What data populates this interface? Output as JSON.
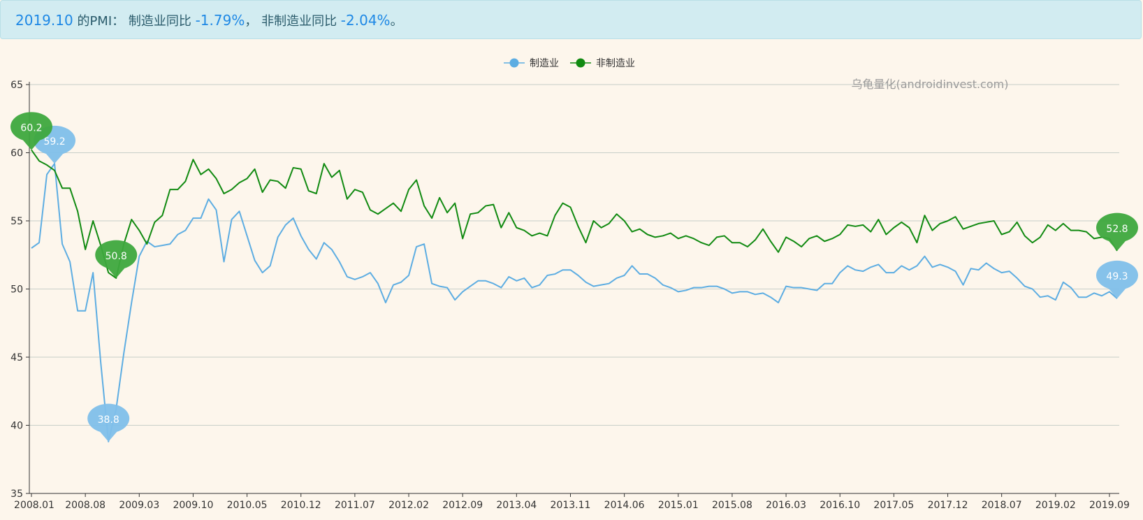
{
  "banner": {
    "period": "2019.10",
    "text1": " 的PMI： 制造业同比 ",
    "mfg_change": "-1.79%",
    "text2": "， 非制造业同比 ",
    "nonmfg_change": "-2.04%",
    "text3": "。"
  },
  "chart_data": {
    "type": "line",
    "watermark": "乌龟量化(androidinvest.com)",
    "ylim": [
      35,
      65
    ],
    "yticks": [
      35,
      40,
      45,
      50,
      55,
      60,
      65
    ],
    "x_start": "2008.01",
    "x_tick_labels": [
      "2008.01",
      "2008.08",
      "2009.03",
      "2009.10",
      "2010.05",
      "2010.12",
      "2011.07",
      "2012.02",
      "2012.09",
      "2013.04",
      "2013.11",
      "2014.06",
      "2015.01",
      "2015.08",
      "2016.03",
      "2016.10",
      "2017.05",
      "2017.12",
      "2018.07",
      "2019.02",
      "2019.09"
    ],
    "grid": true,
    "legend_position": "top-center",
    "series": [
      {
        "name": "制造业",
        "color": "#5dade2",
        "marker_color": "#7fbfea",
        "values": [
          53.0,
          53.4,
          58.4,
          59.2,
          53.3,
          52.0,
          48.4,
          48.4,
          51.2,
          44.6,
          38.8,
          41.2,
          45.3,
          49.0,
          52.4,
          53.5,
          53.1,
          53.2,
          53.3,
          54.0,
          54.3,
          55.2,
          55.2,
          56.6,
          55.8,
          52.0,
          55.1,
          55.7,
          53.9,
          52.1,
          51.2,
          51.7,
          53.8,
          54.7,
          55.2,
          53.9,
          52.9,
          52.2,
          53.4,
          52.9,
          52.0,
          50.9,
          50.7,
          50.9,
          51.2,
          50.4,
          49.0,
          50.3,
          50.5,
          51.0,
          53.1,
          53.3,
          50.4,
          50.2,
          50.1,
          49.2,
          49.8,
          50.2,
          50.6,
          50.6,
          50.4,
          50.1,
          50.9,
          50.6,
          50.8,
          50.1,
          50.3,
          51.0,
          51.1,
          51.4,
          51.4,
          51.0,
          50.5,
          50.2,
          50.3,
          50.4,
          50.8,
          51.0,
          51.7,
          51.1,
          51.1,
          50.8,
          50.3,
          50.1,
          49.8,
          49.9,
          50.1,
          50.1,
          50.2,
          50.2,
          50.0,
          49.7,
          49.8,
          49.8,
          49.6,
          49.7,
          49.4,
          49.0,
          50.2,
          50.1,
          50.1,
          50.0,
          49.9,
          50.4,
          50.4,
          51.2,
          51.7,
          51.4,
          51.3,
          51.6,
          51.8,
          51.2,
          51.2,
          51.7,
          51.4,
          51.7,
          52.4,
          51.6,
          51.8,
          51.6,
          51.3,
          50.3,
          51.5,
          51.4,
          51.9,
          51.5,
          51.2,
          51.3,
          50.8,
          50.2,
          50.0,
          49.4,
          49.5,
          49.2,
          50.5,
          50.1,
          49.4,
          49.4,
          49.7,
          49.5,
          49.8,
          49.3
        ],
        "annotations": [
          {
            "label": "59.2",
            "index": 3
          },
          {
            "label": "38.8",
            "index": 10
          },
          {
            "label": "49.3",
            "index": 141
          }
        ]
      },
      {
        "name": "非制造业",
        "color": "#118a11",
        "marker_color": "#3ea83e",
        "values": [
          60.2,
          59.4,
          59.1,
          58.7,
          57.4,
          57.4,
          55.7,
          52.9,
          55.0,
          53.2,
          51.2,
          50.8,
          53.3,
          55.1,
          54.3,
          53.3,
          54.9,
          55.4,
          57.3,
          57.3,
          57.9,
          59.5,
          58.4,
          58.8,
          58.1,
          57.0,
          57.3,
          57.8,
          58.1,
          58.8,
          57.1,
          58.0,
          57.9,
          57.4,
          58.9,
          58.8,
          57.2,
          57.0,
          59.2,
          58.2,
          58.7,
          56.6,
          57.3,
          57.1,
          55.8,
          55.5,
          55.9,
          56.3,
          55.7,
          57.3,
          58.0,
          56.1,
          55.2,
          56.7,
          55.6,
          56.3,
          53.7,
          55.5,
          55.6,
          56.1,
          56.2,
          54.5,
          55.6,
          54.5,
          54.3,
          53.9,
          54.1,
          53.9,
          55.4,
          56.3,
          56.0,
          54.6,
          53.4,
          55.0,
          54.5,
          54.8,
          55.5,
          55.0,
          54.2,
          54.4,
          54.0,
          53.8,
          53.9,
          54.1,
          53.7,
          53.9,
          53.7,
          53.4,
          53.2,
          53.8,
          53.9,
          53.4,
          53.4,
          53.1,
          53.6,
          54.4,
          53.5,
          52.7,
          53.8,
          53.5,
          53.1,
          53.7,
          53.9,
          53.5,
          53.7,
          54.0,
          54.7,
          54.6,
          54.7,
          54.2,
          55.1,
          54.0,
          54.5,
          54.9,
          54.5,
          53.4,
          55.4,
          54.3,
          54.8,
          55.0,
          55.3,
          54.4,
          54.6,
          54.8,
          54.9,
          55.0,
          54.0,
          54.2,
          54.9,
          53.9,
          53.4,
          53.8,
          54.7,
          54.3,
          54.8,
          54.3,
          54.3,
          54.2,
          53.7,
          53.8,
          53.7,
          52.8
        ],
        "annotations": [
          {
            "label": "60.2",
            "index": 0
          },
          {
            "label": "50.8",
            "index": 11
          },
          {
            "label": "52.8",
            "index": 141
          }
        ]
      }
    ]
  }
}
